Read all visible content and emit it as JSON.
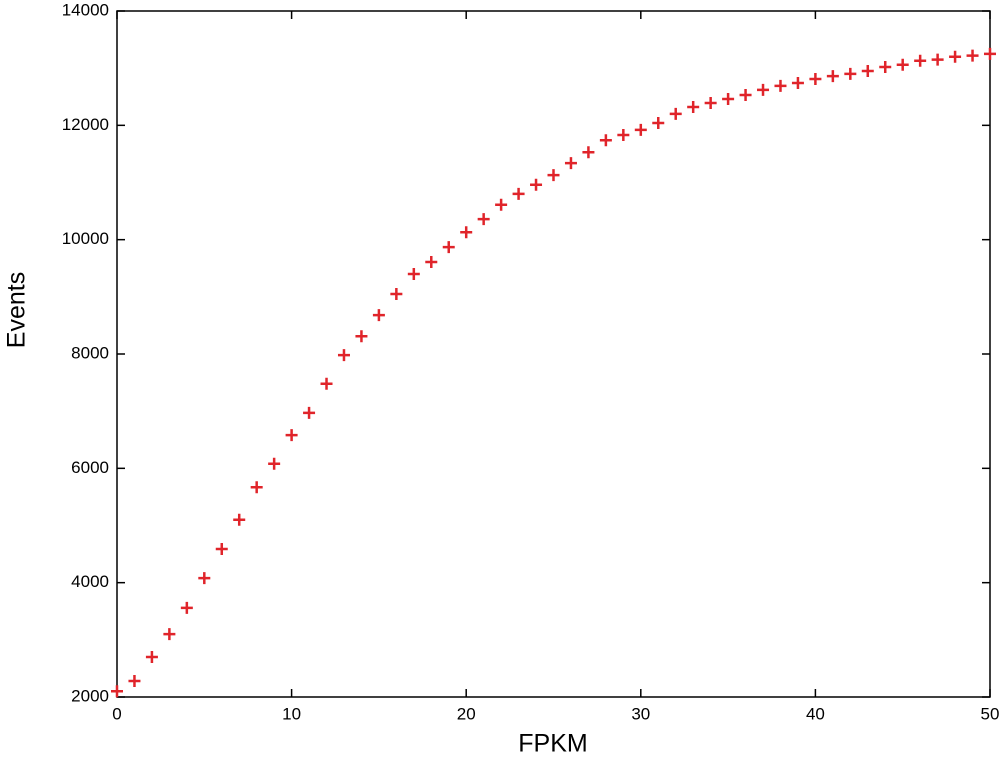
{
  "chart_data": {
    "type": "scatter",
    "xlabel": "FPKM",
    "ylabel": "Events",
    "x": [
      0,
      1,
      2,
      3,
      4,
      5,
      6,
      7,
      8,
      9,
      10,
      11,
      12,
      13,
      14,
      15,
      16,
      17,
      18,
      19,
      20,
      21,
      22,
      23,
      24,
      25,
      26,
      27,
      28,
      29,
      30,
      31,
      32,
      33,
      34,
      35,
      36,
      37,
      38,
      39,
      40,
      41,
      42,
      43,
      44,
      45,
      46,
      47,
      48,
      49,
      50
    ],
    "values": [
      2100,
      2280,
      2700,
      3100,
      3560,
      4080,
      4590,
      5100,
      5670,
      6080,
      6580,
      6970,
      7480,
      7980,
      8310,
      8680,
      9050,
      9400,
      9610,
      9870,
      10130,
      10360,
      10610,
      10800,
      10960,
      11130,
      11340,
      11530,
      11740,
      11830,
      11920,
      12040,
      12200,
      12320,
      12390,
      12460,
      12530,
      12620,
      12690,
      12740,
      12810,
      12860,
      12900,
      12950,
      13020,
      13060,
      13130,
      13150,
      13200,
      13220,
      13250
    ],
    "color": "#e0242a",
    "xlim": [
      0,
      50
    ],
    "ylim": [
      2000,
      14000
    ],
    "xticks": [
      0,
      10,
      20,
      30,
      40,
      50
    ],
    "yticks": [
      2000,
      4000,
      6000,
      8000,
      10000,
      12000,
      14000
    ],
    "grid": false
  }
}
